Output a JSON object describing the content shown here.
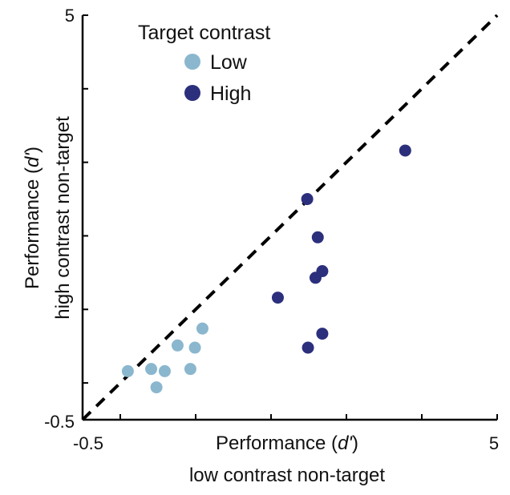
{
  "chart_data": {
    "type": "scatter",
    "title": "",
    "xlabel_line1": "Performance (",
    "xlabel_italic": "d'",
    "xlabel_close": ")",
    "xlabel_line2": "low contrast non-target",
    "ylabel_line1": "Performance (",
    "ylabel_italic": "d'",
    "ylabel_close": ")",
    "ylabel_line2": "high contrast non-target",
    "xlim": [
      -0.5,
      5
    ],
    "ylim": [
      -0.5,
      5
    ],
    "x_ticks": [
      0,
      1,
      2,
      3,
      4,
      5
    ],
    "y_ticks": [
      0,
      1,
      2,
      3,
      4,
      5
    ],
    "x_tick_labels": {
      "min": "-0.5",
      "max": "5"
    },
    "y_tick_labels": {
      "min": "-0.5",
      "max": "5"
    },
    "grid": false,
    "legend": {
      "title": "Target contrast",
      "placement": "top-left"
    },
    "reference_line": {
      "type": "identity",
      "style": "dashed",
      "color": "#000000"
    },
    "series": [
      {
        "name": "Low",
        "color": "#8ab7ce",
        "points": [
          {
            "x": 1.09,
            "y": 0.74
          },
          {
            "x": 0.76,
            "y": 0.51
          },
          {
            "x": 0.99,
            "y": 0.48
          },
          {
            "x": 0.1,
            "y": 0.16
          },
          {
            "x": 0.41,
            "y": 0.19
          },
          {
            "x": 0.59,
            "y": 0.16
          },
          {
            "x": 0.93,
            "y": 0.19
          },
          {
            "x": 0.48,
            "y": -0.06
          }
        ]
      },
      {
        "name": "High",
        "color": "#2b2f7c",
        "points": [
          {
            "x": 2.48,
            "y": 2.5
          },
          {
            "x": 2.62,
            "y": 1.98
          },
          {
            "x": 2.68,
            "y": 1.52
          },
          {
            "x": 2.59,
            "y": 1.43
          },
          {
            "x": 2.09,
            "y": 1.16
          },
          {
            "x": 2.68,
            "y": 0.67
          },
          {
            "x": 2.49,
            "y": 0.48
          },
          {
            "x": 3.78,
            "y": 3.16
          }
        ]
      }
    ]
  }
}
